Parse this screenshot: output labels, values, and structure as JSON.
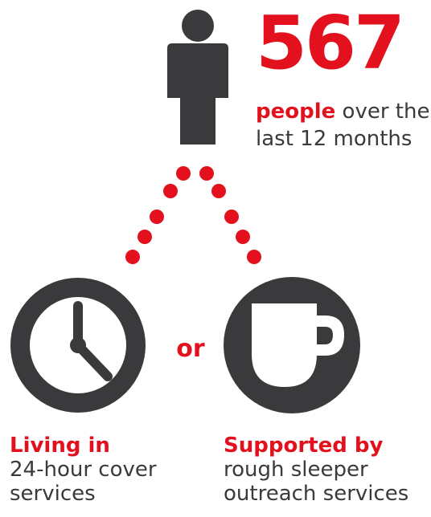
{
  "stat": {
    "number": "567",
    "highlight": "people",
    "rest": " over the last 12 months"
  },
  "connector": "or",
  "options": [
    {
      "heading": "Living in",
      "text": "24-hour cover services",
      "icon": "clock-icon"
    },
    {
      "heading": "Supported by",
      "text": "rough sleeper outreach services",
      "icon": "cup-icon"
    }
  ],
  "colors": {
    "accent": "#e3101d",
    "dark": "#3a3a3c"
  }
}
